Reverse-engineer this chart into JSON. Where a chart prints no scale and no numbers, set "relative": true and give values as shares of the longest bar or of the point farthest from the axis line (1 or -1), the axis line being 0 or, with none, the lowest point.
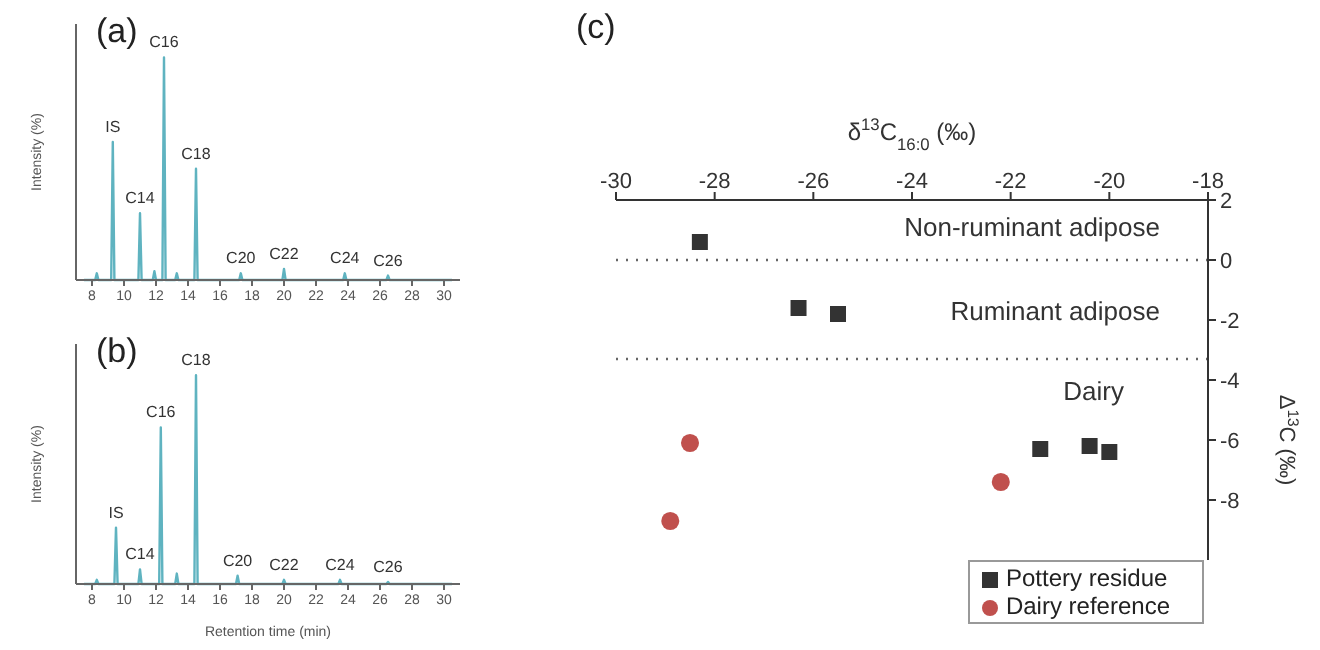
{
  "chart_data": [
    {
      "type": "line",
      "title": "(a)",
      "ylabel": "Intensity (%)",
      "relative": true,
      "tick_labels": "x",
      "marker": "none",
      "grid": false,
      "legend": false,
      "xlim": [
        7,
        31
      ],
      "xticks": [
        8,
        10,
        12,
        14,
        16,
        18,
        20,
        22,
        24,
        26,
        28,
        30
      ],
      "series": [
        {
          "color": "#5fb3c0",
          "x": [
            7.5,
            8.2,
            8.3,
            8.4,
            9.2,
            9.3,
            9.4,
            10.9,
            11,
            11.1,
            11.8,
            11.9,
            12,
            12.4,
            12.5,
            12.6,
            13.2,
            13.3,
            13.4,
            14.4,
            14.5,
            14.6,
            17.2,
            17.3,
            17.4,
            19.9,
            20,
            20.1,
            23.7,
            23.8,
            23.9,
            26.4,
            26.5,
            26.6,
            30.5
          ],
          "values": [
            0,
            0,
            0.03,
            0,
            0,
            0.62,
            0,
            0,
            0.3,
            0,
            0,
            0.04,
            0,
            0,
            1,
            0,
            0,
            0.03,
            0,
            0,
            0.5,
            0,
            0,
            0.03,
            0,
            0,
            0.05,
            0,
            0,
            0.03,
            0,
            0,
            0.02,
            0,
            0
          ]
        }
      ],
      "annotations": [
        {
          "text": "IS",
          "x": 9.3,
          "y": 0.62
        },
        {
          "text": "C14",
          "x": 11,
          "y": 0.3
        },
        {
          "text": "C16",
          "x": 12.5,
          "y": 1
        },
        {
          "text": "C18",
          "x": 14.5,
          "y": 0.5
        },
        {
          "text": "C20",
          "x": 17.3,
          "y": 0.03
        },
        {
          "text": "C22",
          "x": 20,
          "y": 0.05
        },
        {
          "text": "C24",
          "x": 23.8,
          "y": 0.03
        },
        {
          "text": "C26",
          "x": 26.5,
          "y": 0.02
        }
      ]
    },
    {
      "type": "line",
      "title": "(b)",
      "xlabel": "Retention time (min)",
      "ylabel": "Intensity (%)",
      "relative": true,
      "tick_labels": "x",
      "marker": "none",
      "grid": false,
      "legend": false,
      "xlim": [
        7,
        31
      ],
      "xticks": [
        8,
        10,
        12,
        14,
        16,
        18,
        20,
        22,
        24,
        26,
        28,
        30
      ],
      "series": [
        {
          "color": "#5fb3c0",
          "x": [
            7.5,
            8.2,
            8.3,
            8.4,
            9.4,
            9.5,
            9.6,
            10.9,
            11,
            11.1,
            12.2,
            12.3,
            12.4,
            13.2,
            13.3,
            13.4,
            14.4,
            14.5,
            14.6,
            17,
            17.1,
            17.2,
            19.9,
            20,
            20.1,
            23.4,
            23.5,
            23.6,
            26.4,
            26.5,
            26.6,
            30.5
          ],
          "values": [
            0,
            0,
            0.02,
            0,
            0,
            0.27,
            0,
            0,
            0.07,
            0,
            0,
            0.75,
            0,
            0,
            0.05,
            0,
            0,
            1,
            0,
            0,
            0.04,
            0,
            0,
            0.02,
            0,
            0,
            0.02,
            0,
            0,
            0.01,
            0,
            0
          ]
        }
      ],
      "annotations": [
        {
          "text": "IS",
          "x": 9.5,
          "y": 0.27
        },
        {
          "text": "C14",
          "x": 11,
          "y": 0.07
        },
        {
          "text": "C16",
          "x": 12.3,
          "y": 0.75
        },
        {
          "text": "C18",
          "x": 14.5,
          "y": 1
        },
        {
          "text": "C20",
          "x": 17.1,
          "y": 0.04
        },
        {
          "text": "C22",
          "x": 20,
          "y": 0.02
        },
        {
          "text": "C24",
          "x": 23.5,
          "y": 0.02
        },
        {
          "text": "C26",
          "x": 26.5,
          "y": 0.01
        }
      ]
    },
    {
      "type": "scatter",
      "title": "(c)",
      "xlabel": "δ$^{13}$C$_{16:0}$ (‰)",
      "ylabel": "Δ$^{13}$C (‰)",
      "grid": false,
      "legend": "bottom right",
      "xlim": [
        -30,
        -18
      ],
      "xticks": [
        -30,
        -28,
        -26,
        -24,
        -22,
        -20,
        -18
      ],
      "ylim": [
        -10,
        2
      ],
      "yticks": [
        -8,
        -6,
        -4,
        -2,
        0,
        2
      ],
      "series": [
        {
          "name": "Pottery residue",
          "color": "#333333",
          "marker": "square",
          "x": [
            -28.3,
            -26.3,
            -25.5,
            -21.4,
            -20.4,
            -20
          ],
          "values": [
            0.6,
            -1.6,
            -1.8,
            -6.3,
            -6.2,
            -6.4
          ]
        },
        {
          "name": "Dairy reference",
          "color": "#c0504d",
          "marker": "circle",
          "x": [
            -28.5,
            -28.9,
            -22.2
          ],
          "values": [
            -6.1,
            -8.7,
            -7.4
          ]
        }
      ],
      "ref_lines": [
        {
          "axis": "y",
          "value": 0,
          "color": "#666666",
          "line_style": "dotted"
        },
        {
          "axis": "y",
          "value": -3.3,
          "color": "#666666",
          "line_style": "dotted"
        }
      ],
      "annotations": [
        "Non-ruminant adipose",
        "Ruminant adipose",
        "Dairy"
      ]
    }
  ]
}
